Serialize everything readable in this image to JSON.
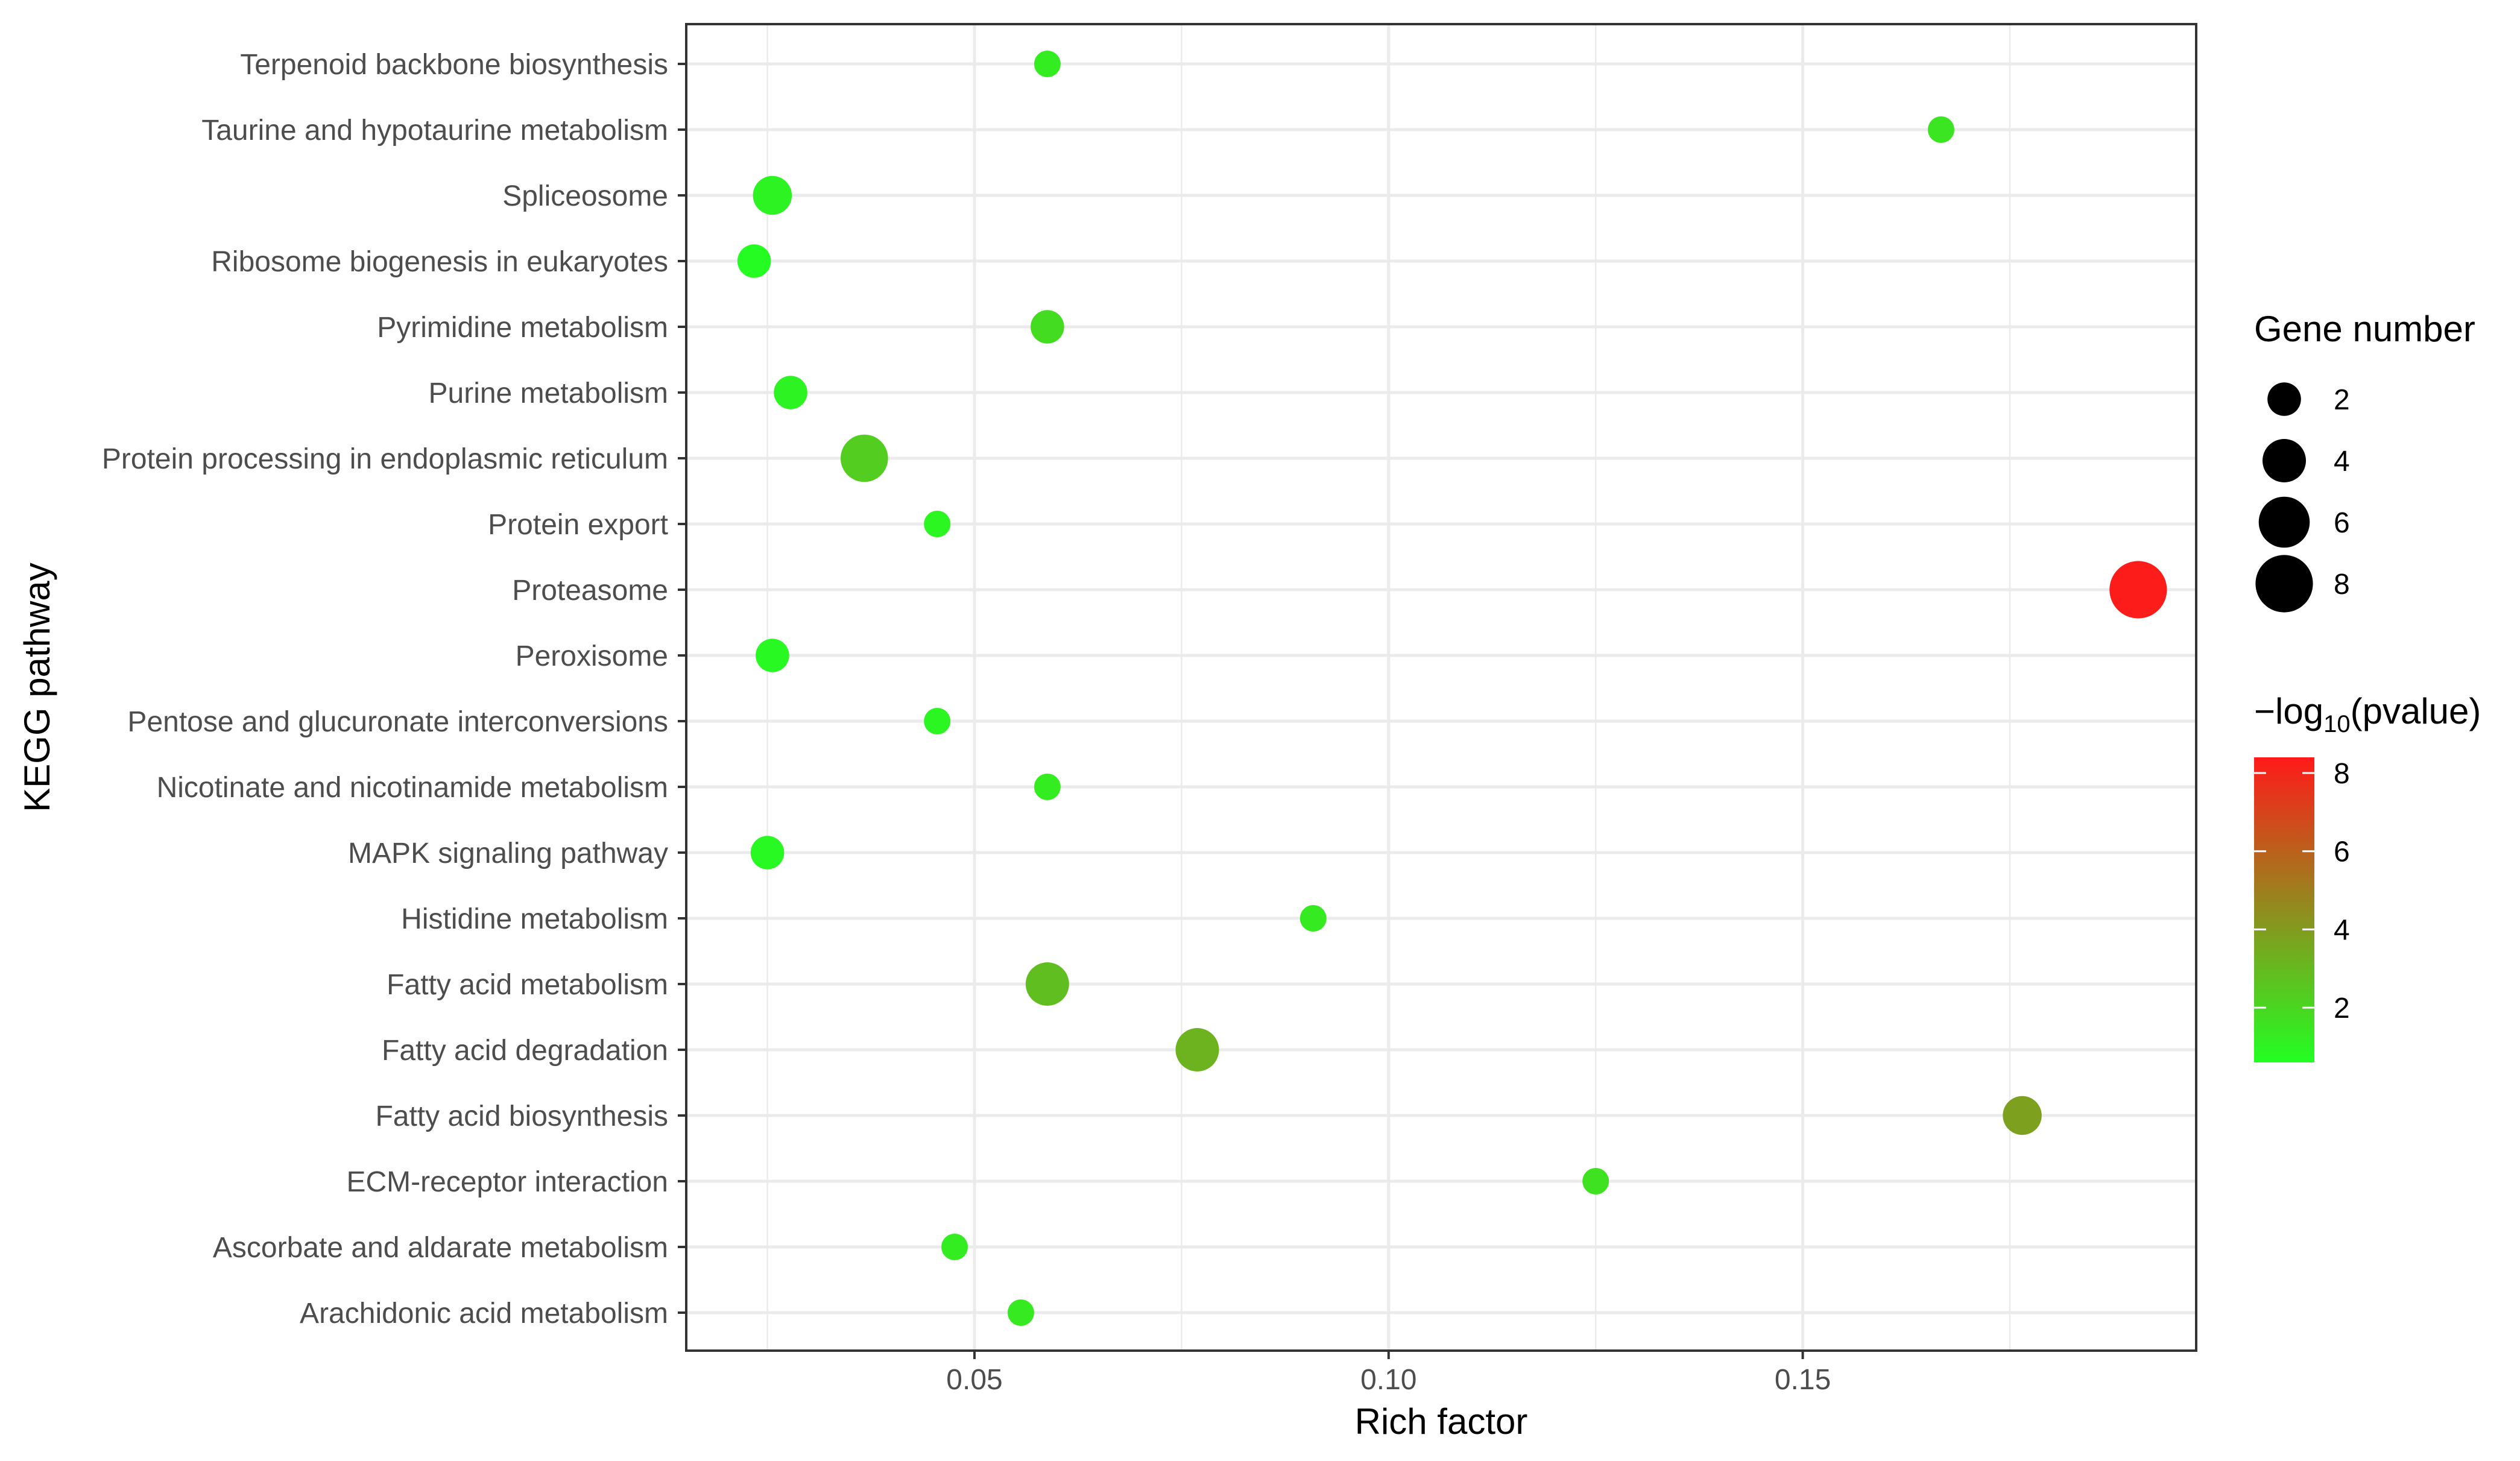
{
  "chart_data": {
    "type": "scatter",
    "xlabel": "Rich factor",
    "ylabel": "KEGG pathway",
    "x_ticks": [
      {
        "value": 0.05,
        "label": "0.05"
      },
      {
        "value": 0.1,
        "label": "0.10"
      },
      {
        "value": 0.15,
        "label": "0.15"
      }
    ],
    "xlim": [
      0.0152,
      0.1975
    ],
    "grid": true,
    "categories": [
      "Terpenoid backbone biosynthesis",
      "Taurine and hypotaurine metabolism",
      "Spliceosome",
      "Ribosome biogenesis in eukaryotes",
      "Pyrimidine metabolism",
      "Purine metabolism",
      "Protein processing in endoplasmic reticulum",
      "Protein export",
      "Proteasome",
      "Peroxisome",
      "Pentose and glucuronate interconversions",
      "Nicotinate and nicotinamide metabolism",
      "MAPK signaling pathway",
      "Histidine metabolism",
      "Fatty acid metabolism",
      "Fatty acid degradation",
      "Fatty acid biosynthesis",
      "ECM-receptor interaction",
      "Ascorbate and aldarate metabolism",
      "Arachidonic acid metabolism"
    ],
    "points": [
      {
        "pathway": "Terpenoid backbone biosynthesis",
        "rich_factor": 0.0588,
        "gene_number": 1,
        "neg_log10_pvalue": 1.2
      },
      {
        "pathway": "Taurine and hypotaurine metabolism",
        "rich_factor": 0.1667,
        "gene_number": 1,
        "neg_log10_pvalue": 1.5
      },
      {
        "pathway": "Spliceosome",
        "rich_factor": 0.0256,
        "gene_number": 3,
        "neg_log10_pvalue": 1.0
      },
      {
        "pathway": "Ribosome biogenesis in eukaryotes",
        "rich_factor": 0.0234,
        "gene_number": 2,
        "neg_log10_pvalue": 0.7
      },
      {
        "pathway": "Pyrimidine metabolism",
        "rich_factor": 0.0588,
        "gene_number": 2,
        "neg_log10_pvalue": 1.8
      },
      {
        "pathway": "Purine metabolism",
        "rich_factor": 0.0278,
        "gene_number": 2,
        "neg_log10_pvalue": 1.0
      },
      {
        "pathway": "Protein processing in endoplasmic reticulum",
        "rich_factor": 0.0367,
        "gene_number": 5,
        "neg_log10_pvalue": 2.3
      },
      {
        "pathway": "Protein export",
        "rich_factor": 0.0455,
        "gene_number": 1,
        "neg_log10_pvalue": 0.9
      },
      {
        "pathway": "Proteasome",
        "rich_factor": 0.1905,
        "gene_number": 8,
        "neg_log10_pvalue": 8.3
      },
      {
        "pathway": "Peroxisome",
        "rich_factor": 0.0256,
        "gene_number": 2,
        "neg_log10_pvalue": 0.8
      },
      {
        "pathway": "Pentose and glucuronate interconversions",
        "rich_factor": 0.0455,
        "gene_number": 1,
        "neg_log10_pvalue": 0.9
      },
      {
        "pathway": "Nicotinate and nicotinamide metabolism",
        "rich_factor": 0.0588,
        "gene_number": 1,
        "neg_log10_pvalue": 1.2
      },
      {
        "pathway": "MAPK signaling pathway",
        "rich_factor": 0.025,
        "gene_number": 2,
        "neg_log10_pvalue": 0.8
      },
      {
        "pathway": "Histidine metabolism",
        "rich_factor": 0.0909,
        "gene_number": 1,
        "neg_log10_pvalue": 1.3
      },
      {
        "pathway": "Fatty acid metabolism",
        "rich_factor": 0.0588,
        "gene_number": 4,
        "neg_log10_pvalue": 2.8
      },
      {
        "pathway": "Fatty acid degradation",
        "rich_factor": 0.0769,
        "gene_number": 4,
        "neg_log10_pvalue": 3.2
      },
      {
        "pathway": "Fatty acid biosynthesis",
        "rich_factor": 0.1765,
        "gene_number": 3,
        "neg_log10_pvalue": 3.8
      },
      {
        "pathway": "ECM-receptor interaction",
        "rich_factor": 0.125,
        "gene_number": 1,
        "neg_log10_pvalue": 1.6
      },
      {
        "pathway": "Ascorbate and aldarate metabolism",
        "rich_factor": 0.0476,
        "gene_number": 1,
        "neg_log10_pvalue": 1.2
      },
      {
        "pathway": "Arachidonic acid metabolism",
        "rich_factor": 0.0556,
        "gene_number": 1,
        "neg_log10_pvalue": 1.3
      }
    ],
    "size_legend": {
      "title": "Gene number",
      "items": [
        {
          "value": 2,
          "label": "2"
        },
        {
          "value": 4,
          "label": "4"
        },
        {
          "value": 6,
          "label": "6"
        },
        {
          "value": 8,
          "label": "8"
        }
      ],
      "color": "#000000"
    },
    "color_legend": {
      "title_prefix": "−log",
      "title_sub": "10",
      "title_suffix": "(pvalue)",
      "low_color": "#22ff22",
      "high_color": "#ff1a1a",
      "range": [
        0.6,
        8.4
      ],
      "ticks": [
        {
          "value": 2,
          "label": "2"
        },
        {
          "value": 4,
          "label": "4"
        },
        {
          "value": 6,
          "label": "6"
        },
        {
          "value": 8,
          "label": "8"
        }
      ]
    },
    "legend_position": "right",
    "colors": {
      "panel_background": "#ffffff",
      "grid": "#ebebeb",
      "panel_border": "#333333"
    }
  }
}
